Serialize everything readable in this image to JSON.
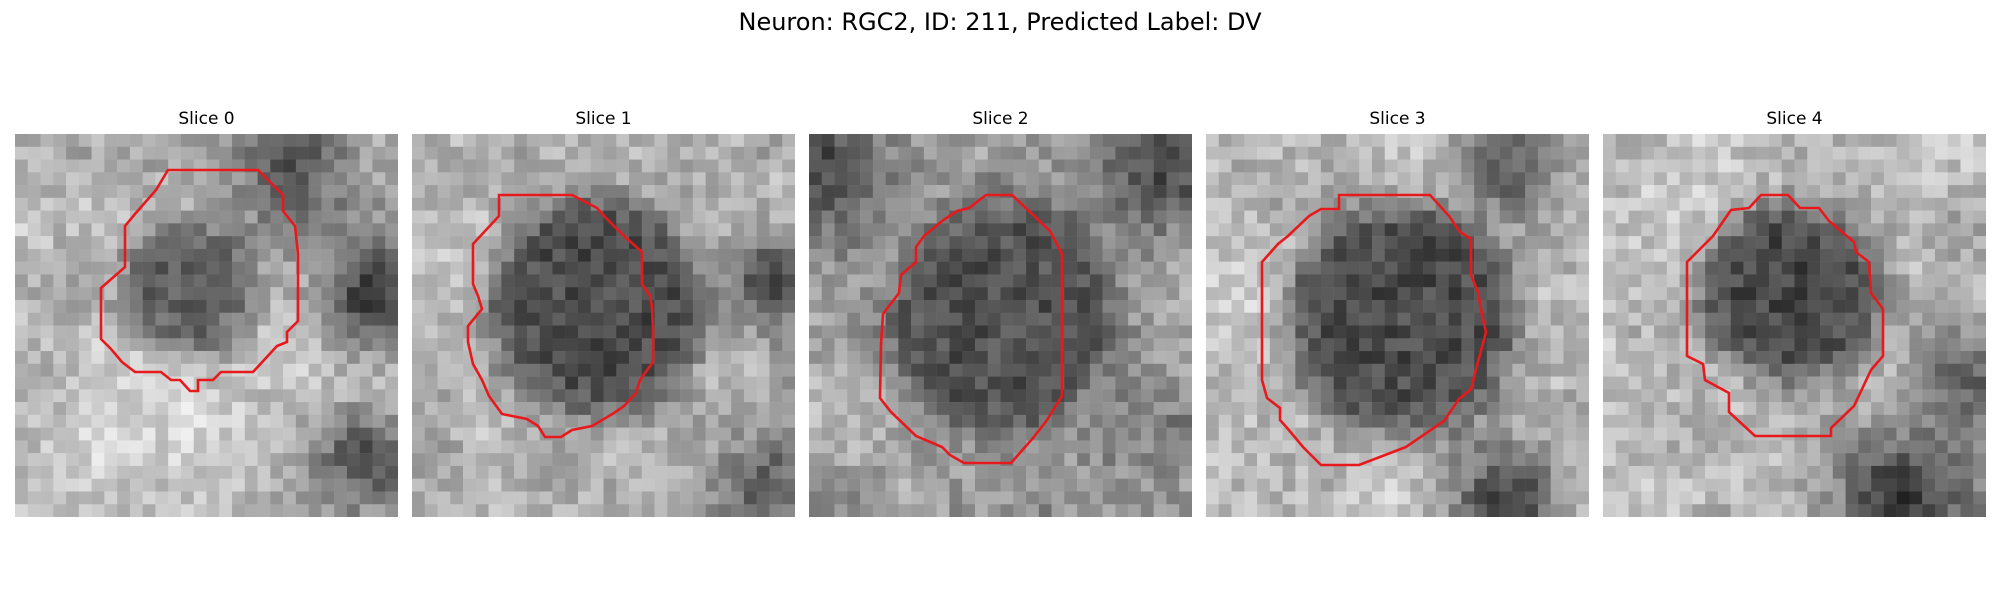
{
  "figure": {
    "title": "Neuron: RGC2, ID: 211, Predicted Label: DV"
  },
  "panels": [
    {
      "title": "Slice 0"
    },
    {
      "title": "Slice 1"
    },
    {
      "title": "Slice 2"
    },
    {
      "title": "Slice 3"
    },
    {
      "title": "Slice 4"
    }
  ],
  "colors": {
    "contour": "#e8191c",
    "background": "#ffffff"
  }
}
